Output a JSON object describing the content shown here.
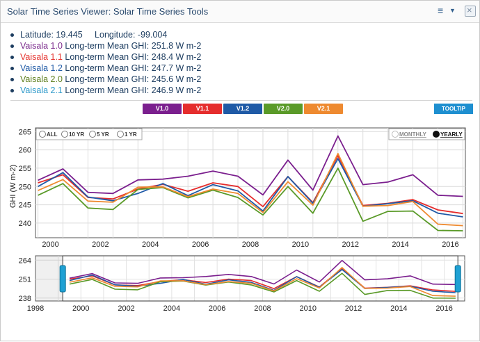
{
  "window": {
    "title": "Solar Time Series Viewer: Solar Time Series Tools",
    "menu_icon": "hamburger-icon",
    "close_icon": "close-icon",
    "close_glyph": "×"
  },
  "location": {
    "latitude_label": "Latitude: 19.445",
    "longitude_label": "Longitude: -99.004"
  },
  "stats": [
    {
      "name": "Vaisala 1.0",
      "suffix": " Long-term Mean GHI: 251.8 W m-2",
      "color": "#7b2a8c"
    },
    {
      "name": "Vaisala 1.1",
      "suffix": " Long-term Mean GHI: 248.4 W m-2",
      "color": "#e5322d"
    },
    {
      "name": "Vaisala 1.2",
      "suffix": " Long-term Mean GHI: 247.7 W m-2",
      "color": "#1f5aa6"
    },
    {
      "name": "Vaisala 2.0",
      "suffix": " Long-term Mean GHI: 245.6 W m-2",
      "color": "#5f7f1f"
    },
    {
      "name": "Vaisala 2.1",
      "suffix": " Long-term Mean GHI: 246.9 W m-2",
      "color": "#2b98c9"
    }
  ],
  "dataset_buttons": [
    {
      "label": "V1.0",
      "color": "#7b1f8e"
    },
    {
      "label": "V1.1",
      "color": "#e52d2d"
    },
    {
      "label": "V1.2",
      "color": "#1f5aa6"
    },
    {
      "label": "V2.0",
      "color": "#5a9a28"
    },
    {
      "label": "V2.1",
      "color": "#ee8a30"
    }
  ],
  "tooltip_button": "TOOLTIP",
  "range_options": [
    {
      "label": "ALL",
      "selected": false
    },
    {
      "label": "10 YR",
      "selected": false
    },
    {
      "label": "5 YR",
      "selected": false
    },
    {
      "label": "1 YR",
      "selected": false
    }
  ],
  "period_options": [
    {
      "label": "MONTHLY",
      "selected": false
    },
    {
      "label": "YEARLY",
      "selected": true
    }
  ],
  "chart_data": [
    {
      "type": "line",
      "ylabel": "GHI (W m-2)",
      "xlim": [
        1999.4,
        2016.6
      ],
      "ylim": [
        236,
        266
      ],
      "yticks": [
        240,
        245,
        250,
        255,
        260,
        265
      ],
      "xticks": [
        2000,
        2002,
        2004,
        2006,
        2008,
        2010,
        2012,
        2014,
        2016
      ],
      "x": [
        1999.5,
        2000.5,
        2001.5,
        2002.5,
        2003.5,
        2004.5,
        2005.5,
        2006.5,
        2007.5,
        2008.5,
        2009.5,
        2010.5,
        2011.5,
        2012.5,
        2013.5,
        2014.5,
        2015.5,
        2016.5
      ],
      "series": [
        {
          "name": "V1.0",
          "color": "#7b1f8e",
          "values": [
            251.7,
            254.8,
            248.4,
            248.1,
            251.8,
            252.0,
            252.8,
            254.2,
            252.8,
            247.7,
            257.2,
            249.0,
            263.8,
            250.5,
            251.2,
            253.2,
            247.6,
            247.3
          ]
        },
        {
          "name": "V1.1",
          "color": "#e52d2d",
          "values": [
            251.0,
            253.2,
            247.0,
            246.6,
            249.3,
            250.6,
            248.7,
            251.0,
            250.0,
            244.5,
            252.7,
            245.6,
            258.4,
            244.8,
            245.4,
            246.4,
            243.6,
            242.6
          ]
        },
        {
          "name": "V1.2",
          "color": "#1f5aa6",
          "values": [
            250.0,
            253.8,
            247.1,
            246.1,
            248.1,
            250.8,
            247.5,
            250.5,
            248.8,
            243.3,
            252.7,
            245.4,
            257.6,
            244.6,
            245.3,
            246.1,
            242.7,
            241.7
          ]
        },
        {
          "name": "V2.0",
          "color": "#5a9a28",
          "values": [
            247.6,
            250.8,
            244.1,
            243.7,
            249.2,
            249.7,
            246.9,
            249.0,
            247.0,
            242.2,
            250.0,
            242.7,
            255.0,
            240.5,
            243.2,
            243.3,
            238.0,
            237.9
          ]
        },
        {
          "name": "V2.1",
          "color": "#ee8a30",
          "values": [
            248.9,
            251.9,
            246.0,
            245.7,
            249.8,
            249.9,
            247.2,
            249.3,
            248.1,
            242.9,
            251.3,
            244.9,
            259.0,
            244.6,
            244.8,
            245.9,
            239.7,
            239.3
          ]
        }
      ]
    },
    {
      "type": "line",
      "role": "navigator",
      "xlim": [
        1998,
        2016.9
      ],
      "ylim": [
        236,
        267
      ],
      "yticks": [
        238,
        251,
        264
      ],
      "xticks": [
        1998,
        2000,
        2002,
        2004,
        2006,
        2008,
        2010,
        2012,
        2014,
        2016
      ],
      "selection": [
        1999.2,
        2016.6
      ]
    }
  ]
}
